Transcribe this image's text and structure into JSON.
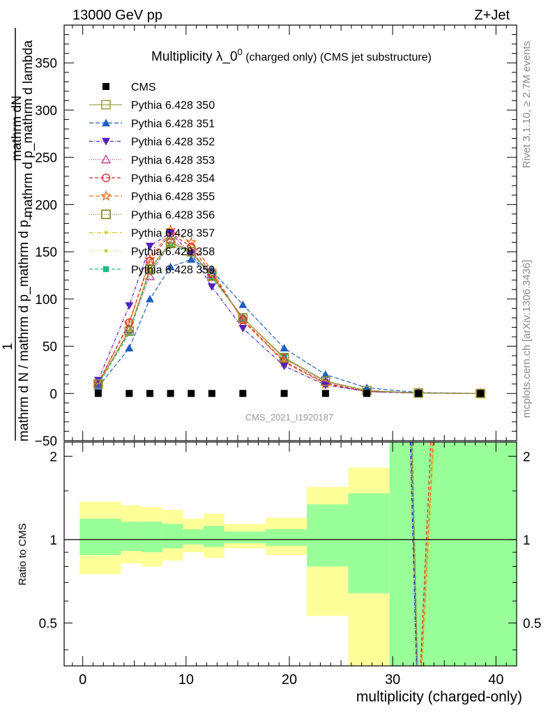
{
  "header": {
    "left": "13000 GeV pp",
    "right": "Z+Jet"
  },
  "side_labels": {
    "rivet": "Rivet 3.1.10, ≥ 2.7M events",
    "mcplots": "mcplots.cern.ch [arXiv:1306.3436]"
  },
  "watermark": "CMS_2021_I1920187",
  "chart_data": [
    {
      "type": "scatter",
      "title_main": "Multiplicity λ_0",
      "title_sup": "0",
      "title_rest": " (charged only) (CMS jet substructure)",
      "ylabel_top": "mathrm dN",
      "ylabel_top2": "mathrm d p_mathrm d lambda",
      "ylabel_num": "1",
      "ylabel_bottom": "mathrm d N / mathrm d p_mathrm d p_",
      "xlim": [
        -1.8,
        42
      ],
      "ylim": [
        -50,
        390
      ],
      "yticks": [
        -50,
        0,
        50,
        100,
        150,
        200,
        250,
        300,
        350
      ],
      "ytick_labels": [
        "−50",
        "0",
        "50",
        "100",
        "150",
        "200",
        "250",
        "300",
        "350"
      ],
      "x": [
        1.5,
        4.5,
        6.5,
        8.5,
        10.5,
        12.5,
        15.5,
        19.5,
        23.5,
        27.5,
        32.5,
        38.5
      ],
      "series": [
        {
          "name": "CMS",
          "color": "#000000",
          "marker": "square-filled",
          "dash": "none",
          "values": [
            0,
            0,
            0,
            0,
            0,
            0,
            0,
            0,
            0,
            0,
            0,
            0
          ]
        },
        {
          "name": "Pythia 6.428 350",
          "color": "#999933",
          "marker": "square-open",
          "dash": "solid",
          "values": [
            10,
            66,
            132,
            160,
            150,
            124,
            80,
            38,
            13,
            3,
            0.5,
            0
          ]
        },
        {
          "name": "Pythia 6.428 351",
          "color": "#1f5fbf",
          "marker": "triangle-filled",
          "dash": "6,3",
          "values": [
            7,
            48,
            100,
            134,
            142,
            130,
            94,
            48,
            20,
            6,
            1,
            0
          ]
        },
        {
          "name": "Pythia 6.428 352",
          "color": "#5522bb",
          "marker": "triangle-down-filled",
          "dash": "5,2,1,2",
          "values": [
            14,
            93,
            156,
            170,
            148,
            113,
            69,
            29,
            9,
            2,
            0.3,
            0
          ]
        },
        {
          "name": "Pythia 6.428 353",
          "color": "#bb2288",
          "marker": "triangle-open",
          "dash": "1,2",
          "values": [
            10,
            68,
            124,
            163,
            150,
            126,
            80,
            37,
            12,
            3,
            0.5,
            0
          ]
        },
        {
          "name": "Pythia 6.428 354",
          "color": "#dd2222",
          "marker": "circle-open",
          "dash": "5,3",
          "values": [
            11,
            75,
            140,
            170,
            155,
            127,
            78,
            34,
            11,
            2,
            0.4,
            0
          ]
        },
        {
          "name": "Pythia 6.428 355",
          "color": "#ee6611",
          "marker": "star-open",
          "dash": "6,3",
          "values": [
            11,
            74,
            142,
            173,
            160,
            130,
            77,
            33,
            10,
            2,
            0.4,
            0
          ]
        },
        {
          "name": "Pythia 6.428 356",
          "color": "#777711",
          "marker": "square-open",
          "dash": "1,2",
          "values": [
            10,
            66,
            131,
            159,
            150,
            125,
            80,
            37,
            13,
            3,
            0.5,
            0
          ]
        },
        {
          "name": "Pythia 6.428 357",
          "color": "#cccc22",
          "marker": "dot",
          "dash": "6,2,1,2",
          "values": [
            10,
            67,
            132,
            160,
            151,
            125,
            80,
            37,
            13,
            3,
            0.5,
            0
          ]
        },
        {
          "name": "Pythia 6.428 358",
          "color": "#aadd22",
          "marker": "dot",
          "dash": "1,2",
          "values": [
            10,
            66,
            131,
            159,
            150,
            124,
            80,
            37,
            13,
            3,
            0.5,
            0
          ]
        },
        {
          "name": "Pythia 6.428 359",
          "color": "#22bb88",
          "marker": "square-filled-small",
          "dash": "5,3",
          "values": [
            9,
            64,
            129,
            157,
            149,
            123,
            80,
            38,
            13,
            3,
            0.5,
            0
          ]
        }
      ]
    },
    {
      "type": "area",
      "ylabel": "Ratio to CMS",
      "xlabel": "multiplicity (charged-only)",
      "xlim": [
        -1.8,
        42
      ],
      "ylim": [
        0.35,
        2.25
      ],
      "xticks": [
        0,
        10,
        20,
        30,
        40
      ],
      "yticks": [
        0.5,
        1,
        2
      ],
      "ytick_labels": [
        "0.5",
        "1",
        "2"
      ],
      "reference": 1,
      "bins": [
        {
          "lo": -0.3,
          "hi": 3.7,
          "inner": [
            0.88,
            1.19
          ],
          "outer": [
            0.75,
            1.37
          ]
        },
        {
          "lo": 3.7,
          "hi": 5.7,
          "inner": [
            0.91,
            1.16
          ],
          "outer": [
            0.82,
            1.33
          ]
        },
        {
          "lo": 5.7,
          "hi": 7.7,
          "inner": [
            0.9,
            1.16
          ],
          "outer": [
            0.8,
            1.31
          ]
        },
        {
          "lo": 7.7,
          "hi": 9.7,
          "inner": [
            0.93,
            1.14
          ],
          "outer": [
            0.84,
            1.28
          ]
        },
        {
          "lo": 9.7,
          "hi": 11.7,
          "inner": [
            0.96,
            1.09
          ],
          "outer": [
            0.9,
            1.19
          ]
        },
        {
          "lo": 11.7,
          "hi": 13.7,
          "inner": [
            0.94,
            1.12
          ],
          "outer": [
            0.86,
            1.24
          ]
        },
        {
          "lo": 13.7,
          "hi": 17.7,
          "inner": [
            0.97,
            1.07
          ],
          "outer": [
            0.93,
            1.14
          ]
        },
        {
          "lo": 17.7,
          "hi": 21.7,
          "inner": [
            0.95,
            1.09
          ],
          "outer": [
            0.88,
            1.2
          ]
        },
        {
          "lo": 21.7,
          "hi": 25.7,
          "inner": [
            0.8,
            1.34
          ],
          "outer": [
            0.53,
            1.55
          ]
        },
        {
          "lo": 25.7,
          "hi": 29.7,
          "inner": [
            0.64,
            1.47
          ],
          "outer": [
            0.35,
            1.82
          ]
        },
        {
          "lo": 29.7,
          "hi": 42,
          "inner": [
            0.35,
            2.25
          ],
          "outer": [
            0.35,
            2.25
          ]
        }
      ],
      "ratio_lines": [
        {
          "color": "#1f5fbf",
          "dash": "6,3",
          "points": [
            [
              31.8,
              2.25
            ],
            [
              32.35,
              0.35
            ]
          ]
        },
        {
          "color": "#5522bb",
          "dash": "5,2,1,2",
          "points": [
            [
              31.7,
              2.25
            ],
            [
              32.3,
              0.35
            ]
          ]
        },
        {
          "color": "#22bb88",
          "dash": "5,3",
          "points": [
            [
              31.9,
              2.25
            ],
            [
              32.4,
              0.35
            ]
          ]
        },
        {
          "color": "#999933",
          "dash": "none",
          "points": [
            [
              31.85,
              2.25
            ],
            [
              32.4,
              0.35
            ]
          ]
        },
        {
          "color": "#ee6611",
          "dash": "6,3",
          "points": [
            [
              33.9,
              2.25
            ],
            [
              32.8,
              0.35
            ]
          ]
        },
        {
          "color": "#dd2222",
          "dash": "5,3",
          "points": [
            [
              33.7,
              2.25
            ],
            [
              32.7,
              0.35
            ]
          ]
        },
        {
          "color": "#cccc22",
          "dash": "6,2,1,2",
          "points": [
            [
              34.0,
              2.25
            ],
            [
              32.85,
              0.35
            ]
          ]
        }
      ]
    }
  ]
}
